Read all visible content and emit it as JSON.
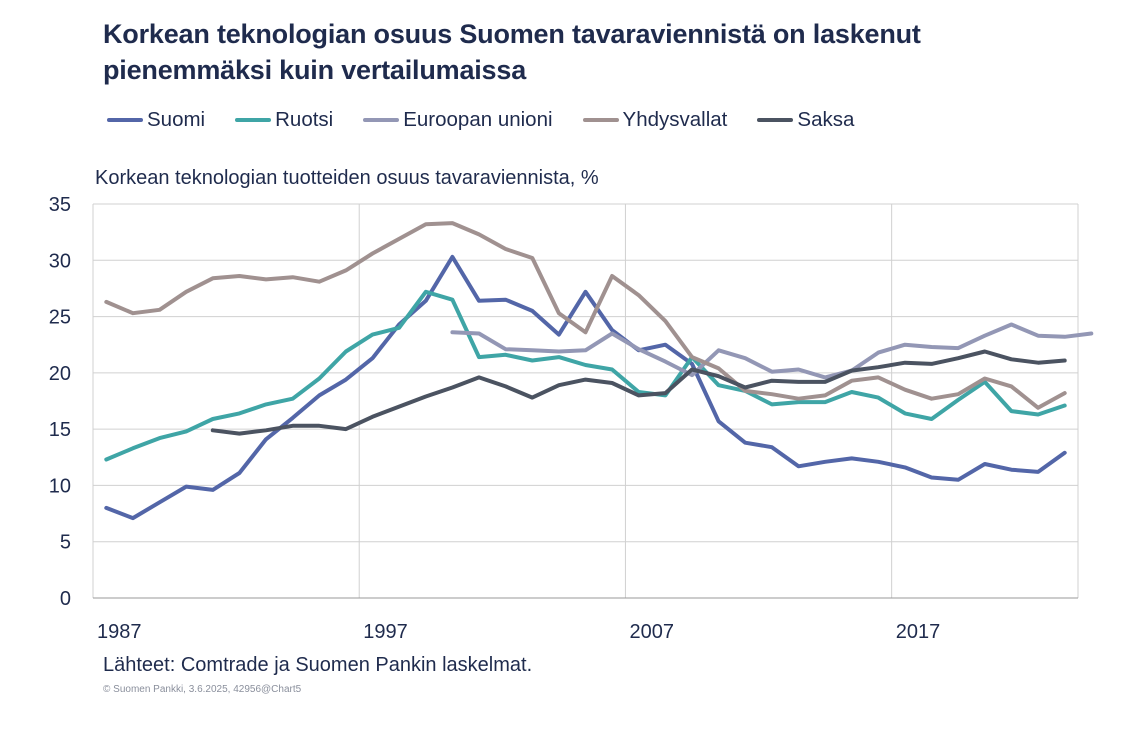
{
  "title": {
    "line1": "Korkean teknologian osuus Suomen tavaraviennistä on laskenut",
    "line2": "pienemmäksi kuin vertailumaissa"
  },
  "subtitle": "Korkean teknologian tuotteiden osuus tavaraviennista, %",
  "source": "Lähteet: Comtrade ja Suomen Pankin laskelmat.",
  "copyright": "© Suomen Pankki, 3.6.2025, 42956@Chart5",
  "chart_data": {
    "type": "line",
    "title": "Korkean teknologian osuus Suomen tavaraviennistä on laskenut pienemmäksi kuin vertailumaissa",
    "ylabel": "Korkean teknologian tuotteiden osuus tavaraviennista, %",
    "xlabel": "",
    "xlim": [
      1986.5,
      2023.5
    ],
    "ylim": [
      0,
      35
    ],
    "yticks": [
      0,
      5,
      10,
      15,
      20,
      25,
      30,
      35
    ],
    "xticks": [
      1987,
      1997,
      2007,
      2017
    ],
    "vgrid": [
      1986.5,
      1996.5,
      2006.5,
      2016.5,
      2023.5
    ],
    "legend_position": "top",
    "series": [
      {
        "name": "Suomi",
        "color": "#5366a8",
        "start": 1987,
        "values": [
          8.0,
          7.1,
          8.5,
          9.9,
          9.6,
          11.1,
          14.1,
          16.0,
          18.0,
          19.4,
          21.3,
          24.3,
          26.4,
          30.3,
          26.4,
          26.5,
          25.5,
          23.4,
          27.2,
          23.8,
          22.0,
          22.5,
          20.8,
          15.7,
          13.8,
          13.4,
          11.7,
          12.1,
          12.4,
          12.1,
          11.6,
          10.7,
          10.5,
          11.9,
          11.4,
          11.2,
          12.9
        ]
      },
      {
        "name": "Ruotsi",
        "color": "#3fa5a6",
        "start": 1987,
        "values": [
          12.3,
          13.3,
          14.2,
          14.8,
          15.9,
          16.4,
          17.2,
          17.7,
          19.5,
          21.9,
          23.4,
          24.0,
          27.2,
          26.5,
          21.4,
          21.6,
          21.1,
          21.4,
          20.7,
          20.3,
          18.3,
          18.0,
          21.4,
          18.9,
          18.4,
          17.2,
          17.4,
          17.4,
          18.3,
          17.8,
          16.4,
          15.9,
          17.6,
          19.2,
          16.6,
          16.3,
          17.1
        ]
      },
      {
        "name": "Euroopan unioni",
        "color": "#9397b5",
        "start": 2000,
        "values": [
          23.6,
          23.5,
          22.1,
          22.0,
          21.9,
          22.0,
          23.5,
          22.1,
          21.0,
          19.8,
          22.0,
          21.3,
          20.1,
          20.3,
          19.6,
          20.2,
          21.8,
          22.5,
          22.3,
          22.2,
          23.3,
          24.3,
          23.3,
          23.2,
          23.5
        ]
      },
      {
        "name": "Yhdysvallat",
        "color": "#a09190",
        "start": 1987,
        "values": [
          26.3,
          25.3,
          25.6,
          27.2,
          28.4,
          28.6,
          28.3,
          28.5,
          28.1,
          29.1,
          30.6,
          31.9,
          33.2,
          33.3,
          32.3,
          31.0,
          30.2,
          25.3,
          23.6,
          28.6,
          26.9,
          24.6,
          21.4,
          20.4,
          18.4,
          18.1,
          17.7,
          18.0,
          19.3,
          19.6,
          18.5,
          17.7,
          18.1,
          19.5,
          18.8,
          16.9,
          18.2
        ]
      },
      {
        "name": "Saksa",
        "color": "#4b5361",
        "start": 1991,
        "values": [
          14.9,
          14.6,
          14.9,
          15.3,
          15.3,
          15.0,
          16.1,
          17.0,
          17.9,
          18.7,
          19.6,
          18.8,
          17.8,
          18.9,
          19.4,
          19.1,
          18.0,
          18.2,
          20.3,
          19.7,
          18.7,
          19.3,
          19.2,
          19.2,
          20.2,
          20.5,
          20.9,
          20.8,
          21.3,
          21.9,
          21.2,
          20.9,
          21.1
        ]
      }
    ]
  }
}
